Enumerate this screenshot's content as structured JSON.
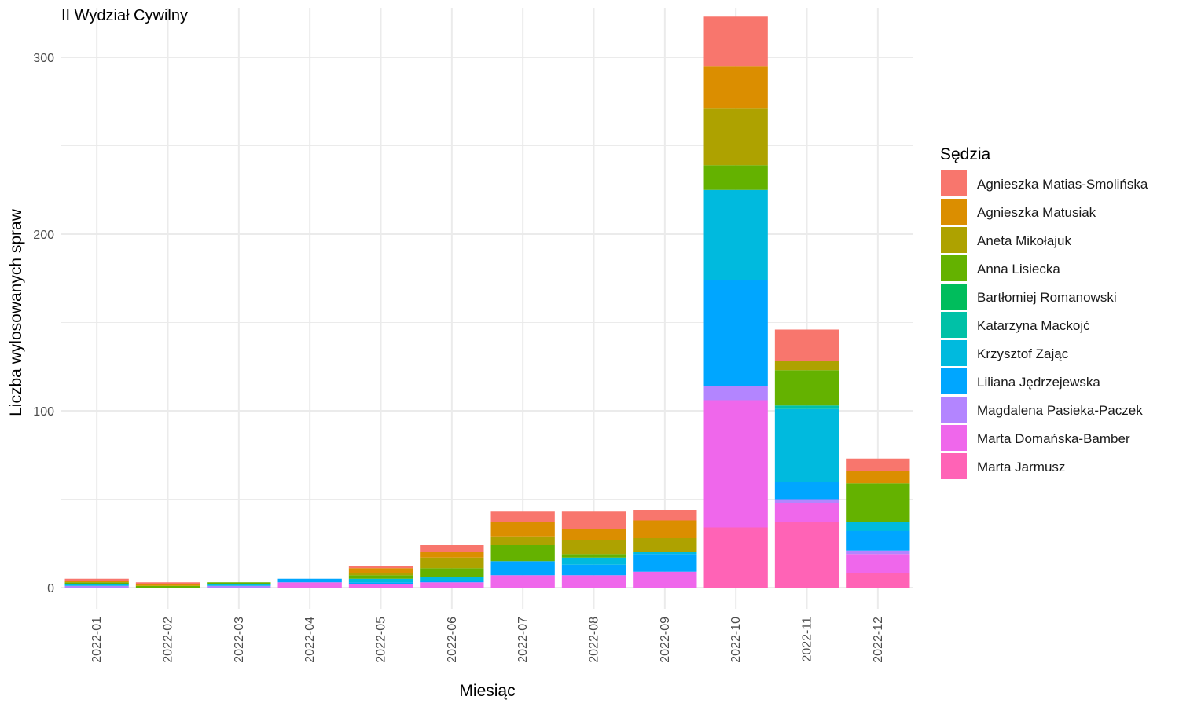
{
  "chart_data": {
    "type": "bar",
    "stacked": true,
    "title": "II Wydział Cywilny",
    "xlabel": "Miesiąc",
    "ylabel": "Liczba wylosowanych spraw",
    "ylim": [
      -12,
      328
    ],
    "yticks": [
      0,
      100,
      200,
      300
    ],
    "grid": true,
    "legend_position": "right",
    "legend_title": "Sędzia",
    "categories": [
      "2022-01",
      "2022-02",
      "2022-03",
      "2022-04",
      "2022-05",
      "2022-06",
      "2022-07",
      "2022-08",
      "2022-09",
      "2022-10",
      "2022-11",
      "2022-12"
    ],
    "series": [
      {
        "name": "Agnieszka Matias-Smolińska",
        "color": "#F8766D",
        "values": [
          1,
          1,
          0,
          0,
          1,
          4,
          6,
          10,
          6,
          28,
          18,
          7
        ]
      },
      {
        "name": "Agnieszka Matusiak",
        "color": "#DB8E00",
        "values": [
          1,
          1,
          0,
          0,
          3,
          3,
          8,
          6,
          10,
          24,
          0,
          7
        ]
      },
      {
        "name": "Aneta Mikołajuk",
        "color": "#AEA200",
        "values": [
          0,
          0,
          0,
          0,
          1,
          6,
          5,
          8,
          8,
          32,
          5,
          0
        ]
      },
      {
        "name": "Anna Lisiecka",
        "color": "#64B200",
        "values": [
          1,
          1,
          1,
          0,
          2,
          5,
          9,
          2,
          0,
          14,
          20,
          22
        ]
      },
      {
        "name": "Bartłomiej Romanowski",
        "color": "#00BD5C",
        "values": [
          0,
          0,
          0,
          0,
          0,
          0,
          0,
          0,
          0,
          0,
          0,
          0
        ]
      },
      {
        "name": "Katarzyna Mackojć",
        "color": "#00C1A7",
        "values": [
          0,
          0,
          0,
          0,
          0,
          0,
          0,
          0,
          0,
          0,
          2,
          0
        ]
      },
      {
        "name": "Krzysztof Zając",
        "color": "#00BADE",
        "values": [
          1,
          0,
          1,
          0,
          2,
          2,
          0,
          4,
          1,
          51,
          41,
          5
        ]
      },
      {
        "name": "Liliana Jędrzejewska",
        "color": "#00A6FF",
        "values": [
          0,
          0,
          0,
          2,
          1,
          1,
          8,
          6,
          10,
          60,
          10,
          11
        ]
      },
      {
        "name": "Magdalena Pasieka-Paczek",
        "color": "#B385FF",
        "values": [
          1,
          0,
          1,
          0,
          0,
          0,
          0,
          0,
          0,
          8,
          2,
          2
        ]
      },
      {
        "name": "Marta Domańska-Bamber",
        "color": "#EF67EB",
        "values": [
          0,
          0,
          0,
          3,
          2,
          3,
          7,
          7,
          9,
          72,
          11,
          11
        ]
      },
      {
        "name": "Marta Jarmusz",
        "color": "#FF63B6",
        "values": [
          0,
          0,
          0,
          0,
          0,
          0,
          0,
          0,
          0,
          34,
          37,
          8
        ]
      }
    ]
  }
}
